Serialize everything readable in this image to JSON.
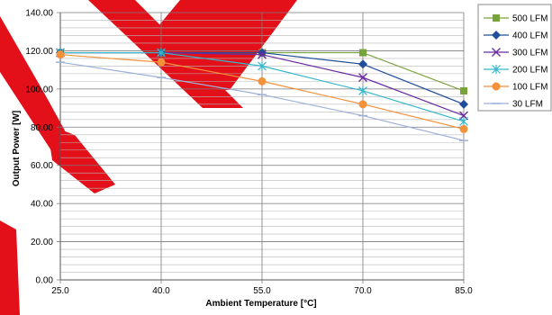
{
  "chart_data": {
    "type": "line",
    "title": "",
    "xlabel": "Ambient Temperature [°C]",
    "ylabel": "Output Power [W]",
    "categories": [
      25.0,
      40.0,
      55.0,
      70.0,
      85.0
    ],
    "x_tick_labels": [
      "25.0",
      "40.0",
      "55.0",
      "70.0",
      "85.0"
    ],
    "y_tick_labels": [
      "0.00",
      "20.00",
      "40.00",
      "60.00",
      "80.00",
      "100.00",
      "120.00",
      "140.00"
    ],
    "xlim": [
      25,
      85
    ],
    "ylim": [
      0,
      140
    ],
    "y_major_step": 20,
    "y_minor_step": 4,
    "grid": true,
    "legend_position": "right",
    "series": [
      {
        "name": "500 LFM",
        "color": "#77a33b",
        "marker": "square",
        "values": [
          119,
          119,
          119,
          119,
          99
        ]
      },
      {
        "name": "400 LFM",
        "color": "#1f4e9a",
        "marker": "diamond",
        "values": [
          119,
          119,
          119,
          113,
          92
        ]
      },
      {
        "name": "300 LFM",
        "color": "#6a2aa0",
        "marker": "x",
        "values": [
          119,
          119,
          118,
          106,
          86
        ]
      },
      {
        "name": "200 LFM",
        "color": "#35b7cc",
        "marker": "asterisk",
        "values": [
          119,
          119,
          112,
          99,
          83
        ]
      },
      {
        "name": "100 LFM",
        "color": "#f4913b",
        "marker": "circle",
        "values": [
          118,
          114,
          104,
          92,
          79
        ]
      },
      {
        "name": "30 LFM",
        "color": "#9db1d8",
        "marker": "dash",
        "values": [
          114,
          106,
          97,
          86,
          73
        ]
      }
    ]
  },
  "watermark": {
    "color": "#e3101a"
  }
}
